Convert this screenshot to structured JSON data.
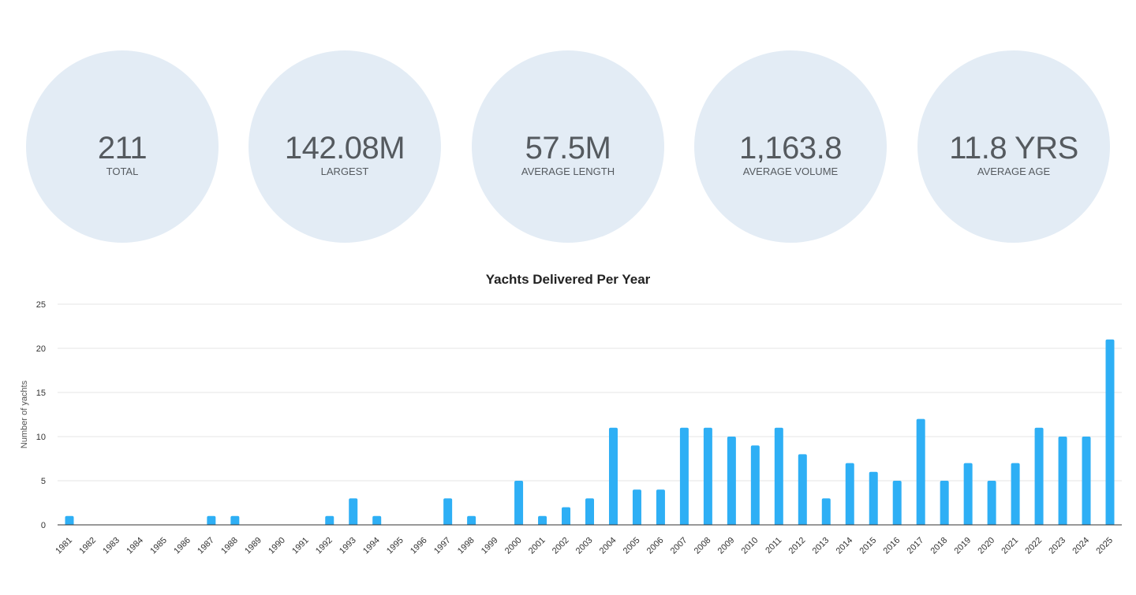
{
  "stats": [
    {
      "value": "211",
      "label": "TOTAL"
    },
    {
      "value": "142.08M",
      "label": "LARGEST"
    },
    {
      "value": "57.5M",
      "label": "AVERAGE LENGTH"
    },
    {
      "value": "1,163.8",
      "label": "AVERAGE VOLUME"
    },
    {
      "value": "11.8 YRS",
      "label": "AVERAGE AGE"
    }
  ],
  "colors": {
    "circle_bg": "#e3ecf5",
    "bar": "#2eaff5",
    "stat_text": "#555a5f"
  },
  "chart_data": {
    "type": "bar",
    "title": "Yachts Delivered Per Year",
    "xlabel": "",
    "ylabel": "Number of yachts",
    "ylim": [
      0,
      25
    ],
    "yticks": [
      0,
      5,
      10,
      15,
      20,
      25
    ],
    "grid": true,
    "categories": [
      "1981",
      "1982",
      "1983",
      "1984",
      "1985",
      "1986",
      "1987",
      "1988",
      "1989",
      "1990",
      "1991",
      "1992",
      "1993",
      "1994",
      "1995",
      "1996",
      "1997",
      "1998",
      "1999",
      "2000",
      "2001",
      "2002",
      "2003",
      "2004",
      "2005",
      "2006",
      "2007",
      "2008",
      "2009",
      "2010",
      "2011",
      "2012",
      "2013",
      "2014",
      "2015",
      "2016",
      "2017",
      "2018",
      "2019",
      "2020",
      "2021",
      "2022",
      "2023",
      "2024",
      "2025"
    ],
    "values": [
      1,
      0,
      0,
      0,
      0,
      0,
      1,
      1,
      0,
      0,
      0,
      1,
      3,
      1,
      0,
      0,
      3,
      1,
      0,
      5,
      1,
      2,
      3,
      11,
      4,
      4,
      11,
      11,
      10,
      9,
      11,
      8,
      3,
      7,
      6,
      5,
      12,
      5,
      7,
      5,
      7,
      11,
      10,
      10,
      21
    ]
  }
}
